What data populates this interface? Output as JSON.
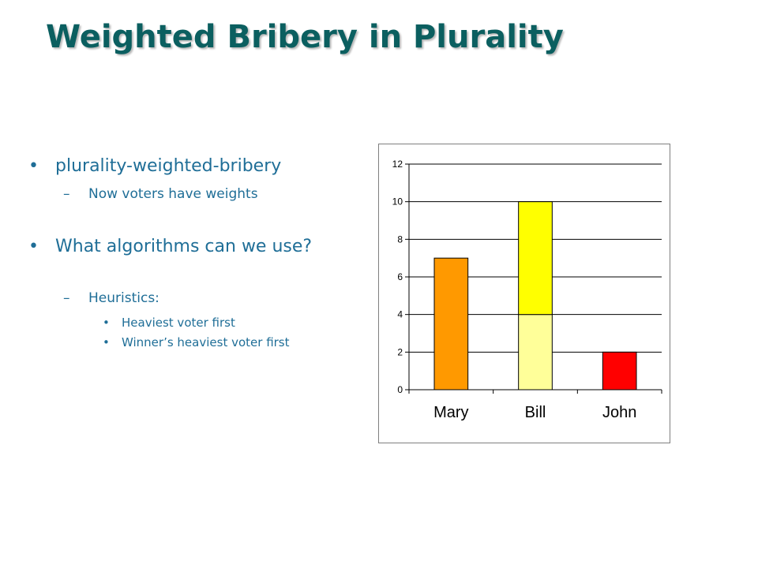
{
  "slide": {
    "title": "Weighted Bribery in Plurality",
    "bullets": [
      {
        "text": "plurality-weighted-bribery"
      },
      {
        "text": "Now voters have weights"
      },
      {
        "text": "What algorithms can we use?"
      },
      {
        "text": "Heuristics:"
      },
      {
        "text": "Heaviest voter first"
      },
      {
        "text": "Winner’s heaviest voter first"
      }
    ]
  },
  "colors": {
    "title": "#0b5f60",
    "bullet_text": "#1f6e97",
    "mary": "#ff9900",
    "bill_upper": "#ffff00",
    "bill_lower": "#ffff99",
    "john": "#ff0000",
    "gridline": "#000000"
  },
  "chart_data": {
    "type": "bar",
    "stacked": true,
    "categories": [
      "Mary",
      "Bill",
      "John"
    ],
    "series": [
      {
        "values": [
          7,
          4,
          2
        ],
        "colors": [
          "#ff9900",
          "#ffff99",
          "#ff0000"
        ]
      },
      {
        "values": [
          0,
          6,
          0
        ],
        "colors": [
          "#ff9900",
          "#ffff00",
          "#ff0000"
        ]
      }
    ],
    "ylim": [
      0,
      12
    ],
    "yticks": [
      "0",
      "2",
      "4",
      "6",
      "8",
      "10",
      "12"
    ],
    "grid": true,
    "legend": "none",
    "title": "",
    "xlabel": "",
    "ylabel": ""
  }
}
